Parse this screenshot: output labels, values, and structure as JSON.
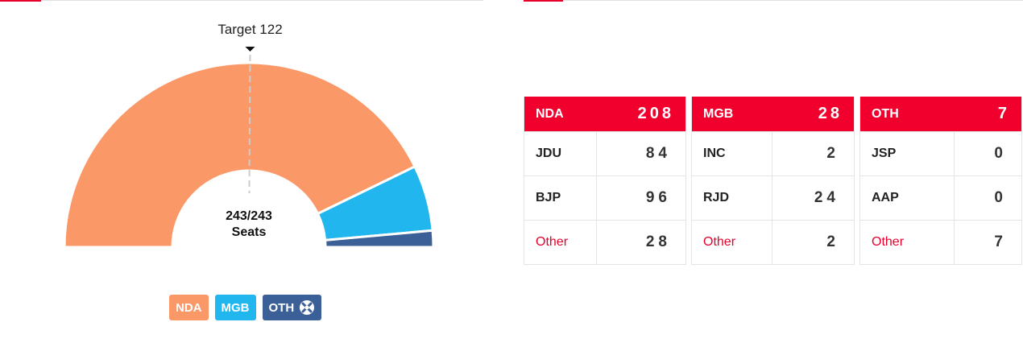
{
  "chart_data": {
    "type": "pie",
    "variant": "semi-circle-donut",
    "total_seats": 243,
    "center_label": "243/243",
    "center_sublabel": "Seats",
    "target_label": "Target 122",
    "target_value": 122,
    "series": [
      {
        "name": "NDA",
        "value": 208,
        "color": "#fb9868"
      },
      {
        "name": "MGB",
        "value": 28,
        "color": "#22b6ee"
      },
      {
        "name": "OTH",
        "value": 7,
        "color": "#3b5f97"
      }
    ]
  },
  "legend": [
    {
      "label": "NDA",
      "color": "#fb9868"
    },
    {
      "label": "MGB",
      "color": "#22b6ee"
    },
    {
      "label": "OTH",
      "color": "#3b5f97",
      "icon": "cross-circle-icon"
    }
  ],
  "tables": [
    {
      "alliance": "NDA",
      "total": "208",
      "rows": [
        {
          "party": "JDU",
          "seats": "84",
          "other": false
        },
        {
          "party": "BJP",
          "seats": "96",
          "other": false
        },
        {
          "party": "Other",
          "seats": "28",
          "other": true
        }
      ]
    },
    {
      "alliance": "MGB",
      "total": "28",
      "rows": [
        {
          "party": "INC",
          "seats": "2",
          "other": false
        },
        {
          "party": "RJD",
          "seats": "24",
          "other": false
        },
        {
          "party": "Other",
          "seats": "2",
          "other": true
        }
      ]
    },
    {
      "alliance": "OTH",
      "total": "7",
      "rows": [
        {
          "party": "JSP",
          "seats": "0",
          "other": false
        },
        {
          "party": "AAP",
          "seats": "0",
          "other": false
        },
        {
          "party": "Other",
          "seats": "7",
          "other": true
        }
      ]
    }
  ],
  "colors": {
    "accent": "#e8002d",
    "table_header": "#f2002d"
  }
}
